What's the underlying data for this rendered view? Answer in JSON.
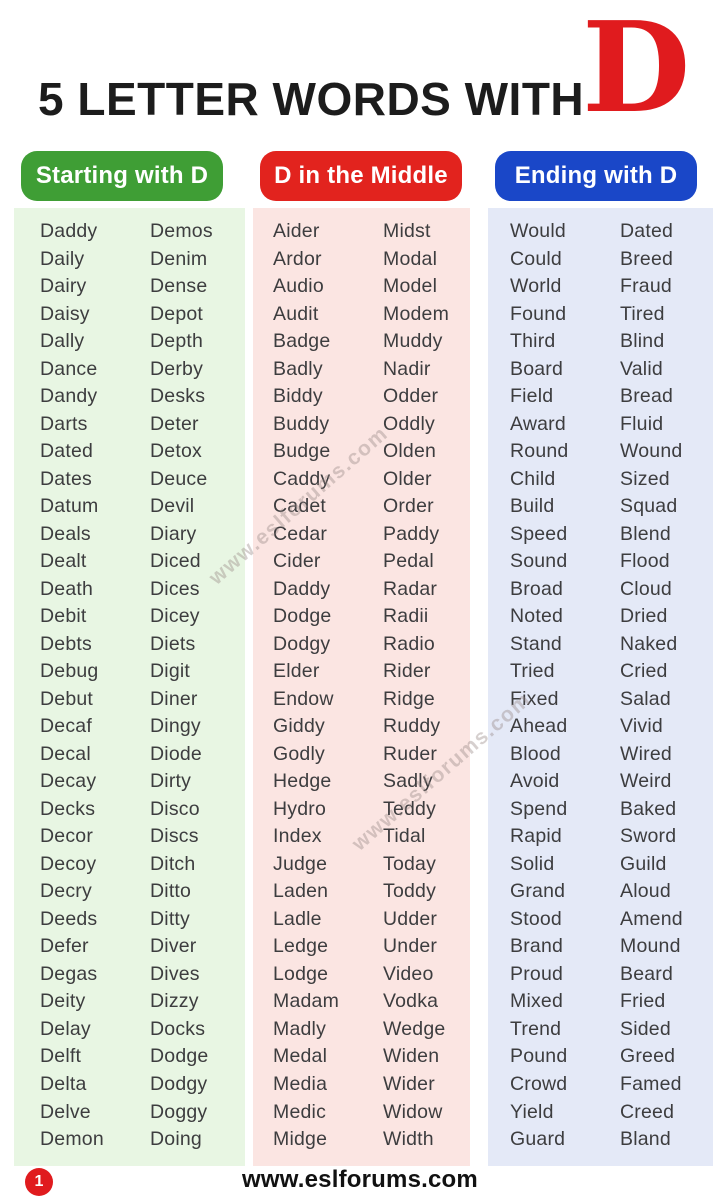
{
  "header": {
    "title": "5 LETTER WORDS WITH",
    "letter": "D"
  },
  "sections": [
    {
      "label": "Starting with D",
      "theme_color": "#3f9e35",
      "panel_color": "#e8f6e3",
      "words_left": [
        "Daddy",
        "Daily",
        "Dairy",
        "Daisy",
        "Dally",
        "Dance",
        "Dandy",
        "Darts",
        "Dated",
        "Dates",
        "Datum",
        "Deals",
        "Dealt",
        "Death",
        "Debit",
        "Debts",
        "Debug",
        "Debut",
        "Decaf",
        "Decal",
        "Decay",
        "Decks",
        "Decor",
        "Decoy",
        "Decry",
        "Deeds",
        "Defer",
        "Degas",
        "Deity",
        "Delay",
        "Delft",
        "Delta",
        "Delve",
        "Demon"
      ],
      "words_right": [
        "Demos",
        "Denim",
        "Dense",
        "Depot",
        "Depth",
        "Derby",
        "Desks",
        "Deter",
        "Detox",
        "Deuce",
        "Devil",
        "Diary",
        "Diced",
        "Dices",
        "Dicey",
        "Diets",
        "Digit",
        "Diner",
        "Dingy",
        "Diode",
        "Dirty",
        "Disco",
        "Discs",
        "Ditch",
        "Ditto",
        "Ditty",
        "Diver",
        "Dives",
        "Dizzy",
        "Docks",
        "Dodge",
        "Dodgy",
        "Doggy",
        "Doing"
      ]
    },
    {
      "label": "D in the Middle",
      "theme_color": "#e2231e",
      "panel_color": "#fbe5e2",
      "words_left": [
        "Aider",
        "Ardor",
        "Audio",
        "Audit",
        "Badge",
        "Badly",
        "Biddy",
        "Buddy",
        "Budge",
        "Caddy",
        "Cadet",
        "Cedar",
        "Cider",
        "Daddy",
        "Dodge",
        "Dodgy",
        "Elder",
        "Endow",
        "Giddy",
        "Godly",
        "Hedge",
        "Hydro",
        "Index",
        "Judge",
        "Laden",
        "Ladle",
        "Ledge",
        "Lodge",
        "Madam",
        "Madly",
        "Medal",
        "Media",
        "Medic",
        "Midge"
      ],
      "words_right": [
        "Midst",
        "Modal",
        "Model",
        "Modem",
        "Muddy",
        "Nadir",
        "Odder",
        "Oddly",
        "Olden",
        "Older",
        "Order",
        "Paddy",
        "Pedal",
        "Radar",
        "Radii",
        "Radio",
        "Rider",
        "Ridge",
        "Ruddy",
        "Ruder",
        "Sadly",
        "Teddy",
        "Tidal",
        "Today",
        "Toddy",
        "Udder",
        "Under",
        "Video",
        "Vodka",
        "Wedge",
        "Widen",
        "Wider",
        "Widow",
        "Width"
      ]
    },
    {
      "label": "Ending with D",
      "theme_color": "#1a47c8",
      "panel_color": "#e4e9f7",
      "words_left": [
        "Would",
        "Could",
        "World",
        "Found",
        "Third",
        "Board",
        "Field",
        "Award",
        "Round",
        "Child",
        "Build",
        "Speed",
        "Sound",
        "Broad",
        "Noted",
        "Stand",
        "Tried",
        "Fixed",
        "Ahead",
        "Blood",
        "Avoid",
        "Spend",
        "Rapid",
        "Solid",
        "Grand",
        "Stood",
        "Brand",
        "Proud",
        "Mixed",
        "Trend",
        "Pound",
        "Crowd",
        "Yield",
        "Guard"
      ],
      "words_right": [
        "Dated",
        "Breed",
        "Fraud",
        "Tired",
        "Blind",
        "Valid",
        "Bread",
        "Fluid",
        "Wound",
        "Sized",
        "Squad",
        "Blend",
        "Flood",
        "Cloud",
        "Dried",
        "Naked",
        "Cried",
        "Salad",
        "Vivid",
        "Wired",
        "Weird",
        "Baked",
        "Sword",
        "Guild",
        "Aloud",
        "Amend",
        "Mound",
        "Beard",
        "Fried",
        "Sided",
        "Greed",
        "Famed",
        "Creed",
        "Bland"
      ]
    }
  ],
  "watermark": "www.eslforums.com",
  "footer": {
    "site": "www.eslforums.com",
    "page_badge": "1"
  },
  "colors": {
    "featured_letter": "#e01b1e",
    "title_text": "#1c1c1c",
    "word_text": "#3d3d3f",
    "badge": "#e01b1e"
  }
}
